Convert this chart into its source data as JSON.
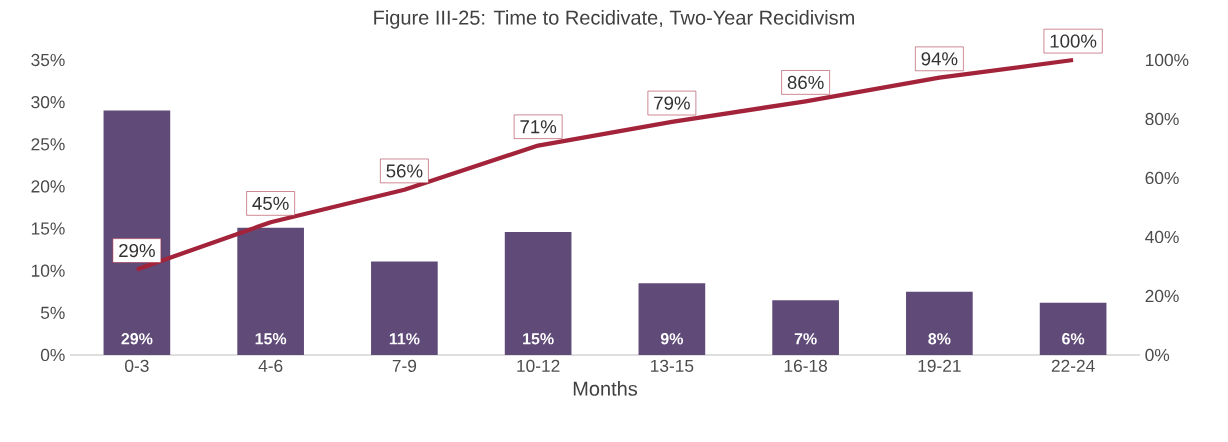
{
  "chart_data": {
    "type": "bar",
    "title": "Figure III-25: Time to Recidivate, Two-Year Recidivism",
    "xlabel": "Months",
    "categories": [
      "0-3",
      "4-6",
      "7-9",
      "10-12",
      "13-15",
      "16-18",
      "19-21",
      "22-24"
    ],
    "series": [
      {
        "color": "#5f4a78",
        "values": [
          29,
          15.1,
          11.1,
          14.6,
          8.5,
          6.5,
          7.5,
          6.2
        ],
        "value_labels": [
          "29%",
          "15%",
          "11%",
          "15%",
          "9%",
          "7%",
          "8%",
          "6%"
        ]
      },
      {
        "type": "line",
        "axis": "y2",
        "color": "#a3243a",
        "values": [
          29,
          45,
          56,
          71,
          79,
          86,
          94,
          100
        ],
        "value_labels": [
          "29%",
          "45%",
          "56%",
          "71%",
          "79%",
          "86%",
          "94%",
          "100%"
        ]
      }
    ],
    "ylim": [
      0,
      35
    ],
    "yticks": [
      {
        "value": 0,
        "label": "0%"
      },
      {
        "value": 5,
        "label": "5%"
      },
      {
        "value": 10,
        "label": "10%"
      },
      {
        "value": 15,
        "label": "15%"
      },
      {
        "value": 20,
        "label": "20%"
      },
      {
        "value": 25,
        "label": "25%"
      },
      {
        "value": 30,
        "label": "30%"
      },
      {
        "value": 35,
        "label": "35%"
      }
    ],
    "y2lim": [
      0,
      100
    ],
    "y2ticks": [
      {
        "value": 0,
        "label": "0%"
      },
      {
        "value": 20,
        "label": "20%"
      },
      {
        "value": 40,
        "label": "40%"
      },
      {
        "value": 60,
        "label": "60%"
      },
      {
        "value": 80,
        "label": "80%"
      },
      {
        "value": 100,
        "label": "100%"
      }
    ]
  }
}
